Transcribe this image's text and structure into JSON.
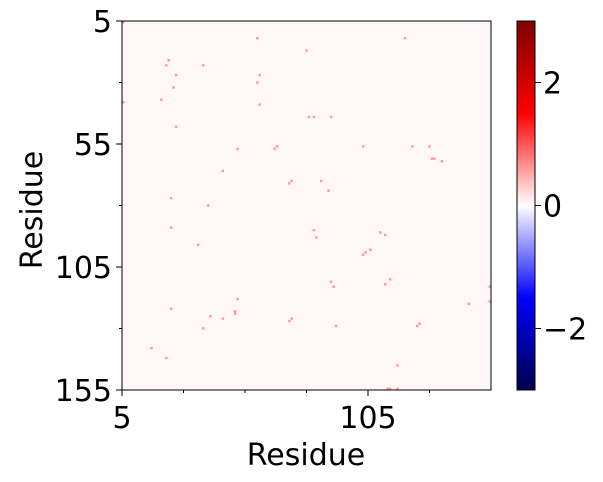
{
  "chart_data": {
    "type": "heatmap",
    "title": "",
    "xlabel": "Residue",
    "ylabel": "Residue",
    "x_range": [
      5,
      155
    ],
    "y_range": [
      5,
      155
    ],
    "x_ticks": [
      "5",
      "105"
    ],
    "y_ticks": [
      "5",
      "55",
      "105",
      "155"
    ],
    "cell_value": 0.6,
    "background_value": 0.0,
    "colorbar": {
      "range": [
        -3,
        3
      ],
      "ticks": [
        "−2",
        "0",
        "2"
      ],
      "colormap": "seismic",
      "colors": [
        "#00004c",
        "#0000ff",
        "#ffffff",
        "#ff0000",
        "#7f0000"
      ]
    },
    "cells": [
      [
        5,
        5
      ],
      [
        5,
        38
      ],
      [
        17,
        138
      ],
      [
        21,
        37
      ],
      [
        23,
        23
      ],
      [
        23,
        142
      ],
      [
        24,
        21
      ],
      [
        25,
        77
      ],
      [
        25,
        89
      ],
      [
        25,
        122
      ],
      [
        26,
        32
      ],
      [
        27,
        27
      ],
      [
        27,
        48
      ],
      [
        36,
        96
      ],
      [
        38,
        130
      ],
      [
        38,
        23
      ],
      [
        40,
        80
      ],
      [
        41,
        125
      ],
      [
        46,
        126
      ],
      [
        46,
        66
      ],
      [
        51,
        123
      ],
      [
        51,
        124
      ],
      [
        52,
        118
      ],
      [
        52,
        57
      ],
      [
        60,
        12
      ],
      [
        60,
        30
      ],
      [
        61,
        27
      ],
      [
        61,
        39
      ],
      [
        67,
        57
      ],
      [
        68,
        56
      ],
      [
        73,
        71
      ],
      [
        74,
        70
      ],
      [
        73,
        127
      ],
      [
        74,
        126
      ],
      [
        80,
        17
      ],
      [
        81,
        44
      ],
      [
        83,
        44
      ],
      [
        83,
        90
      ],
      [
        84,
        93
      ],
      [
        86,
        70
      ],
      [
        89,
        74
      ],
      [
        90,
        44
      ],
      [
        90,
        111
      ],
      [
        91,
        113
      ],
      [
        92,
        129
      ],
      [
        103,
        56
      ],
      [
        103,
        100
      ],
      [
        104,
        99
      ],
      [
        106,
        98
      ],
      [
        106,
        98
      ],
      [
        110,
        91
      ],
      [
        112,
        92
      ],
      [
        112,
        112
      ],
      [
        113,
        156
      ],
      [
        114,
        110
      ],
      [
        114,
        156
      ],
      [
        117,
        145
      ],
      [
        117,
        155
      ],
      [
        120,
        12
      ],
      [
        123,
        56
      ],
      [
        125,
        129
      ],
      [
        126,
        128
      ],
      [
        130,
        56
      ],
      [
        131,
        61
      ],
      [
        132,
        61
      ],
      [
        135,
        62
      ],
      [
        146,
        120
      ],
      [
        156,
        113
      ],
      [
        156,
        119
      ]
    ]
  }
}
